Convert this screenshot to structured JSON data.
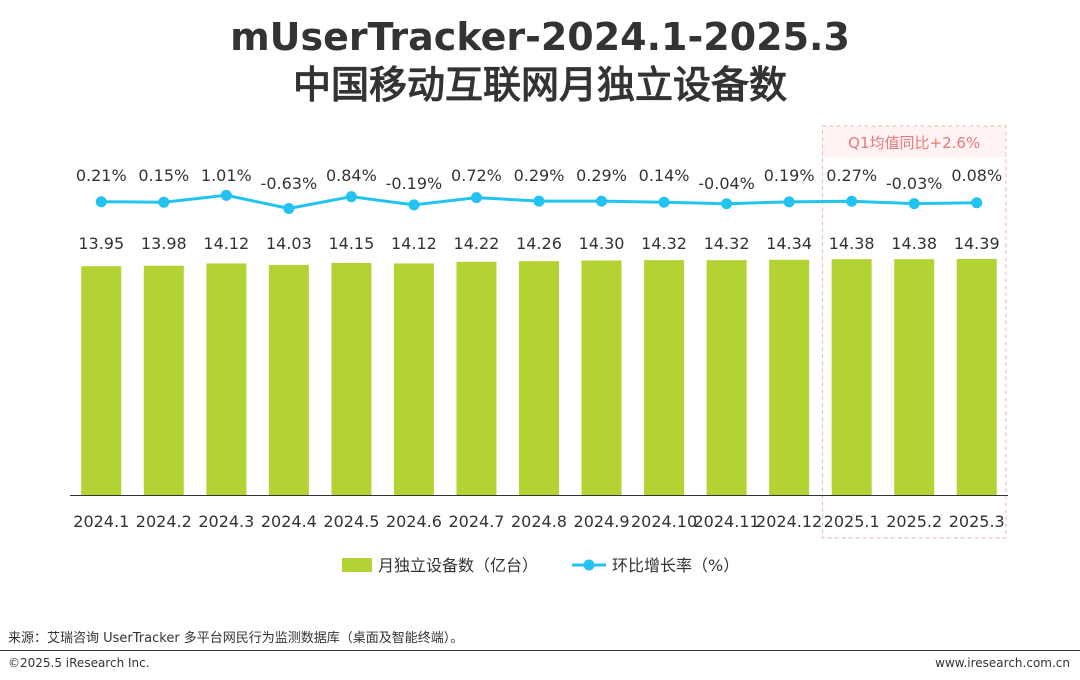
{
  "header": {
    "title_line1": "mUserTracker-2024.1-2025.3",
    "title_line2": "中国移动互联网月独立设备数"
  },
  "highlight": {
    "label": "Q1均值同比+2.6%",
    "border_color": "#f3b0b0",
    "fill_color": "#fff3f3",
    "text_color": "#e8787a",
    "start_index": 12,
    "end_index": 14
  },
  "colors": {
    "bar": "#b3d335",
    "line": "#22c3f0",
    "axis": "#333333",
    "text": "#333333"
  },
  "chart_data": {
    "type": "bar+line",
    "categories": [
      "2024.1",
      "2024.2",
      "2024.3",
      "2024.4",
      "2024.5",
      "2024.6",
      "2024.7",
      "2024.8",
      "2024.9",
      "2024.10",
      "2024.11",
      "2024.12",
      "2025.1",
      "2025.2",
      "2025.3"
    ],
    "series": [
      {
        "name": "月独立设备数（亿台）",
        "type": "bar",
        "values": [
          13.95,
          13.98,
          14.12,
          14.03,
          14.15,
          14.12,
          14.22,
          14.26,
          14.3,
          14.32,
          14.32,
          14.34,
          14.38,
          14.38,
          14.39
        ],
        "labels": [
          "13.95",
          "13.98",
          "14.12",
          "14.03",
          "14.15",
          "14.12",
          "14.22",
          "14.26",
          "14.30",
          "14.32",
          "14.32",
          "14.34",
          "14.38",
          "14.38",
          "14.39"
        ]
      },
      {
        "name": "环比增长率（%）",
        "type": "line",
        "values": [
          0.21,
          0.15,
          1.01,
          -0.63,
          0.84,
          -0.19,
          0.72,
          0.29,
          0.29,
          0.14,
          -0.04,
          0.19,
          0.27,
          -0.03,
          0.08
        ],
        "labels": [
          "0.21%",
          "0.15%",
          "1.01%",
          "-0.63%",
          "0.84%",
          "-0.19%",
          "0.72%",
          "0.29%",
          "0.29%",
          "0.14%",
          "-0.04%",
          "0.19%",
          "0.27%",
          "-0.03%",
          "0.08%"
        ]
      }
    ],
    "legend_position": "bottom",
    "grid": false
  },
  "footer": {
    "source": "来源：艾瑞咨询 UserTracker 多平台网民行为监测数据库（桌面及智能终端）。",
    "copyright": "©2025.5 iResearch Inc.",
    "website": "www.iresearch.com.cn"
  }
}
